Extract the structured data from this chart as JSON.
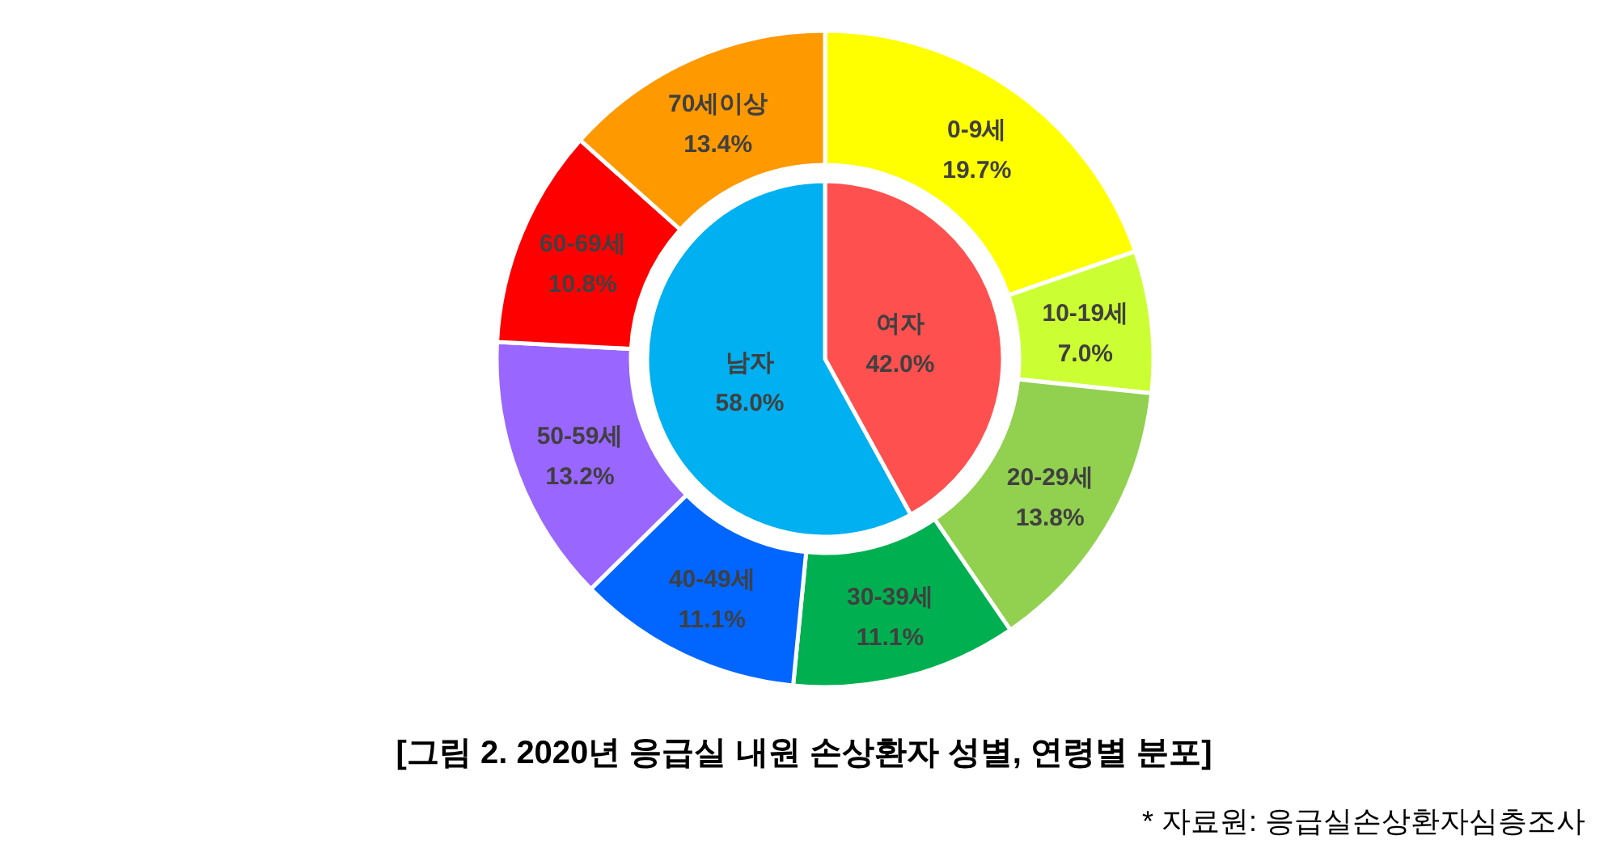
{
  "chart_data": [
    {
      "type": "pie",
      "title": "[그림 2. 2020년 응급실 내원 손상환자 성별, 연령별 분포]",
      "annotations": [
        "* 자료원: 응급실손상환자심층조사"
      ],
      "categories": [
        "여자",
        "남자"
      ],
      "values": [
        42.0,
        58.0
      ],
      "value_labels": [
        "42.0%",
        "58.0%"
      ],
      "colors": [
        "#ff5050",
        "#00b0f0"
      ]
    },
    {
      "type": "donut",
      "categories": [
        "0-9세",
        "10-19세",
        "20-29세",
        "30-39세",
        "40-49세",
        "50-59세",
        "60-69세",
        "70세이상"
      ],
      "values": [
        19.7,
        7.0,
        13.8,
        11.1,
        11.1,
        13.2,
        10.8,
        13.4
      ],
      "value_labels": [
        "19.7%",
        "7.0%",
        "13.8%",
        "11.1%",
        "11.1%",
        "13.2%",
        "10.8%",
        "13.4%"
      ],
      "colors": [
        "#ffff00",
        "#ccff33",
        "#92d050",
        "#00b050",
        "#0066ff",
        "#9966ff",
        "#ff0000",
        "#ff9900"
      ]
    }
  ]
}
